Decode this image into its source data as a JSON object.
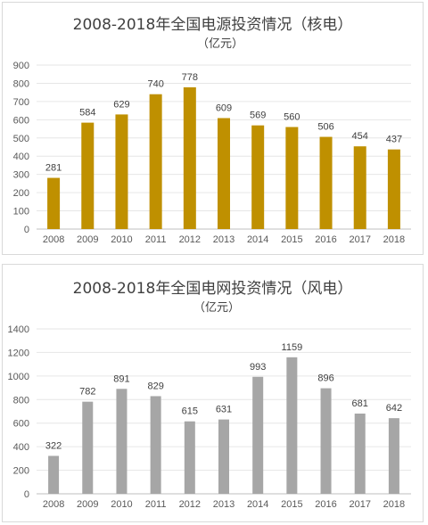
{
  "chart_data": [
    {
      "type": "bar",
      "title": "2008-2018年全国电源投资情况（核电）",
      "subtitle": "（亿元）",
      "categories": [
        "2008",
        "2009",
        "2010",
        "2011",
        "2012",
        "2013",
        "2014",
        "2015",
        "2016",
        "2017",
        "2018"
      ],
      "values": [
        281,
        584,
        629,
        740,
        778,
        609,
        569,
        560,
        506,
        454,
        437
      ],
      "ylim": [
        0,
        900
      ],
      "yticks": [
        0,
        100,
        200,
        300,
        400,
        500,
        600,
        700,
        800,
        900
      ],
      "color": "#bf9000",
      "grid": true,
      "legend": "none"
    },
    {
      "type": "bar",
      "title": "2008-2018年全国电网投资情况（风电）",
      "subtitle": "（亿元）",
      "categories": [
        "2008",
        "2009",
        "2010",
        "2011",
        "2012",
        "2013",
        "2014",
        "2015",
        "2016",
        "2017",
        "2018"
      ],
      "values": [
        322,
        782,
        891,
        829,
        615,
        631,
        993,
        1159,
        896,
        681,
        642
      ],
      "ylim": [
        0,
        1400
      ],
      "yticks": [
        0,
        200,
        400,
        600,
        800,
        1000,
        1200,
        1400
      ],
      "color": "#a6a6a6",
      "grid": true,
      "legend": "none"
    }
  ]
}
